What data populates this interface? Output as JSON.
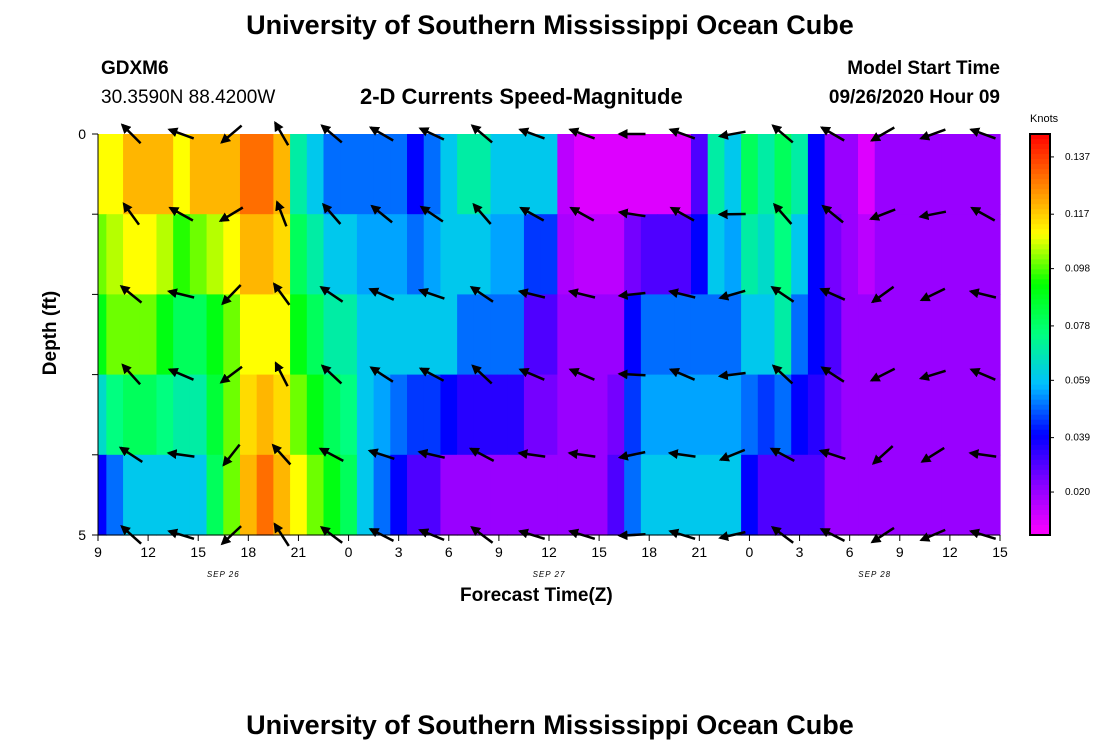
{
  "header": {
    "title_top": "University of Southern Mississippi Ocean Cube",
    "title_bottom": "University of Southern Mississippi Ocean Cube",
    "station": "GDXM6",
    "location": "30.3590N 88.4200W",
    "subtitle": "2-D Currents Speed-Magnitude",
    "model_start_label": "Model Start Time",
    "model_start_value": "09/26/2020 Hour 09"
  },
  "colors": {
    "ramp": [
      "#ff00ff",
      "#8800ff",
      "#0000ff",
      "#00bfff",
      "#00ff80",
      "#00ff00",
      "#ffff00",
      "#ff8000",
      "#ff0000"
    ],
    "arrow": "#000000",
    "axis": "#000000"
  },
  "chart_data": {
    "type": "heatmap",
    "title": "2-D Currents Speed-Magnitude",
    "xlabel": "Forecast Time(Z)",
    "ylabel": "Depth (ft)",
    "units": "Knots",
    "x_ticks": [
      "9",
      "12",
      "15",
      "18",
      "21",
      "0",
      "3",
      "6",
      "9",
      "12",
      "15",
      "18",
      "21",
      "0",
      "3",
      "6",
      "9",
      "12",
      "15"
    ],
    "date_labels": [
      {
        "label": "SEP 26",
        "hour_index": 7.5
      },
      {
        "label": "SEP 27",
        "hour_index": 27
      },
      {
        "label": "SEP 28",
        "hour_index": 46.5
      }
    ],
    "x_range_hours": [
      0,
      54
    ],
    "y_tick_labels": [
      "0",
      "",
      "",
      "",
      "",
      "5"
    ],
    "y_range": [
      0,
      5
    ],
    "colorbar_ticks": [
      0.137,
      0.117,
      0.098,
      0.078,
      0.059,
      0.039,
      0.02
    ],
    "colorbar_range": [
      0.005,
      0.145
    ],
    "depth_rows": 5,
    "speed_by_hour_top": [
      0.11,
      0.11,
      0.12,
      0.12,
      0.12,
      0.11,
      0.12,
      0.12,
      0.12,
      0.13,
      0.13,
      0.12,
      0.07,
      0.06,
      0.05,
      0.05,
      0.05,
      0.05,
      0.05,
      0.04,
      0.05,
      0.06,
      0.07,
      0.07,
      0.06,
      0.06,
      0.06,
      0.06,
      0.015,
      0.01,
      0.01,
      0.01,
      0.01,
      0.01,
      0.01,
      0.01,
      0.03,
      0.07,
      0.06,
      0.08,
      0.07,
      0.08,
      0.07,
      0.04,
      0.02,
      0.02,
      0.01,
      0.02,
      0.02,
      0.02,
      0.02,
      0.02,
      0.02,
      0.02,
      0.02
    ],
    "speed_by_hour_mid": [
      0.09,
      0.1,
      0.1,
      0.1,
      0.09,
      0.08,
      0.08,
      0.09,
      0.1,
      0.11,
      0.11,
      0.11,
      0.09,
      0.08,
      0.07,
      0.07,
      0.06,
      0.06,
      0.06,
      0.06,
      0.06,
      0.06,
      0.05,
      0.05,
      0.05,
      0.05,
      0.03,
      0.03,
      0.02,
      0.02,
      0.02,
      0.02,
      0.04,
      0.05,
      0.05,
      0.05,
      0.05,
      0.05,
      0.05,
      0.06,
      0.06,
      0.07,
      0.05,
      0.04,
      0.03,
      0.02,
      0.02,
      0.02,
      0.02,
      0.02,
      0.02,
      0.02,
      0.02,
      0.02,
      0.02
    ],
    "speed_by_hour_bot": [
      0.04,
      0.05,
      0.06,
      0.06,
      0.06,
      0.06,
      0.06,
      0.08,
      0.1,
      0.12,
      0.13,
      0.12,
      0.11,
      0.1,
      0.09,
      0.08,
      0.06,
      0.05,
      0.04,
      0.03,
      0.03,
      0.02,
      0.02,
      0.02,
      0.02,
      0.02,
      0.02,
      0.02,
      0.02,
      0.02,
      0.02,
      0.03,
      0.05,
      0.06,
      0.06,
      0.06,
      0.06,
      0.06,
      0.06,
      0.04,
      0.03,
      0.03,
      0.03,
      0.03,
      0.02,
      0.02,
      0.02,
      0.02,
      0.02,
      0.02,
      0.02,
      0.02,
      0.02,
      0.02,
      0.02
    ],
    "arrow_hours": [
      2,
      5,
      8,
      11,
      14,
      17,
      20,
      23,
      26,
      29,
      32,
      35,
      38,
      41,
      44,
      47,
      50,
      53
    ],
    "arrow_dir_deg": [
      225,
      200,
      140,
      240,
      220,
      210,
      205,
      220,
      200,
      200,
      180,
      200,
      170,
      220,
      210,
      150,
      160,
      200
    ],
    "arrow_depths": [
      0,
      1,
      2,
      3,
      4,
      5
    ]
  }
}
